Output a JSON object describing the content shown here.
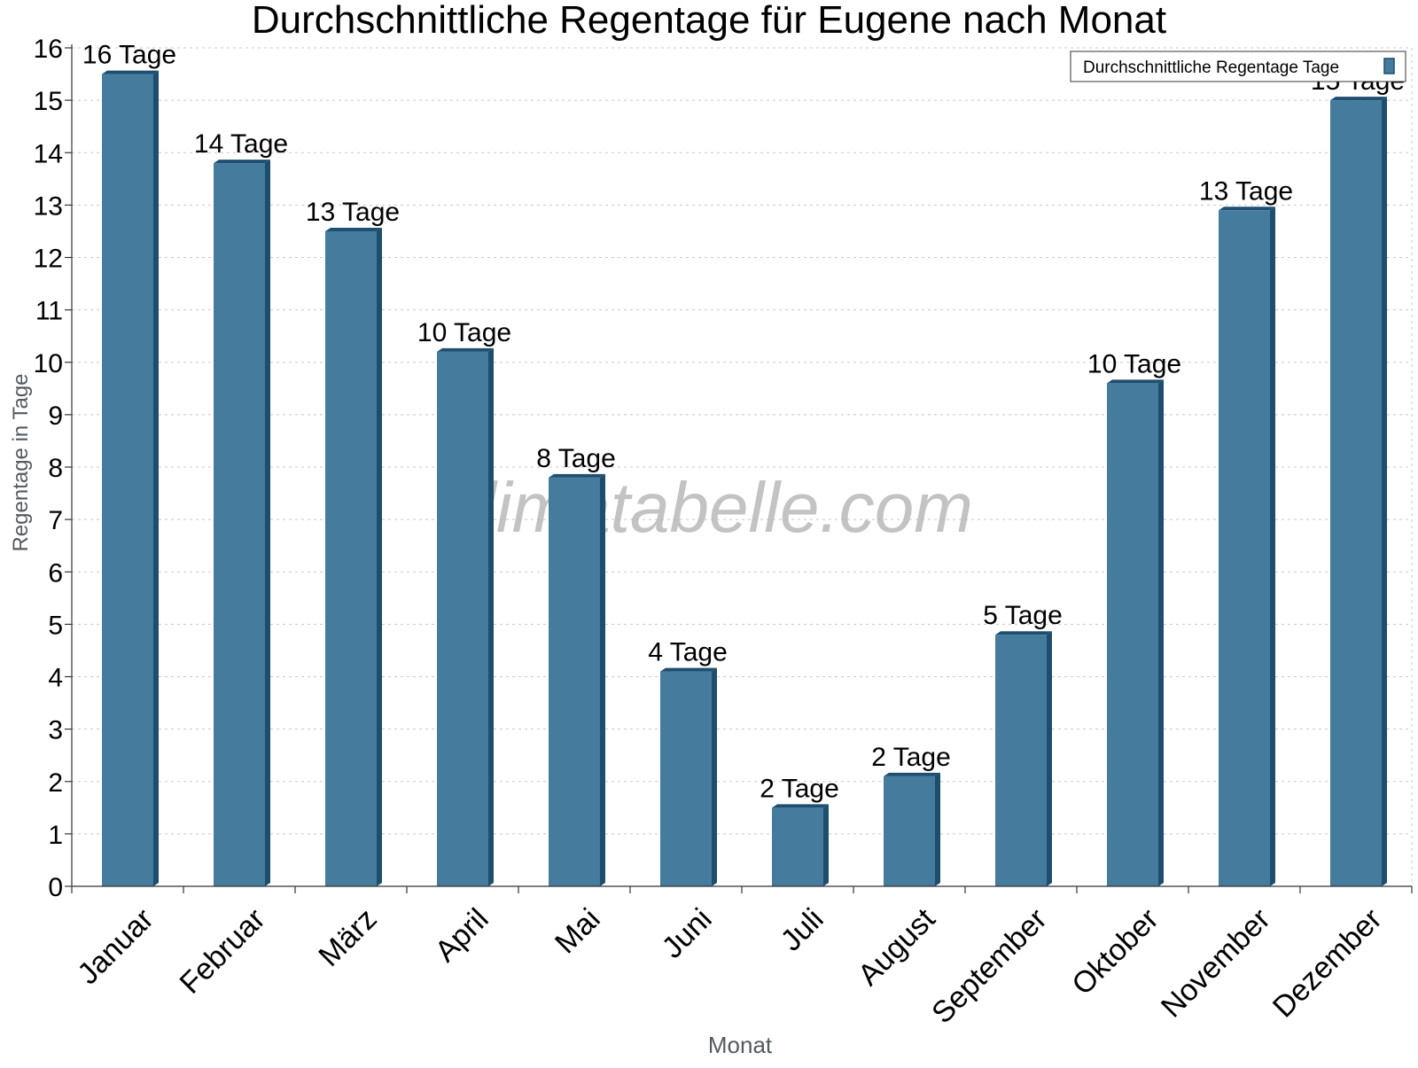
{
  "chart_data": {
    "type": "bar",
    "title": "Durchschnittliche Regentage für Eugene nach Monat",
    "xlabel": "Monat",
    "ylabel": "Regentage in Tage",
    "ylim": [
      0,
      16
    ],
    "yticks": [
      0,
      1,
      2,
      3,
      4,
      5,
      6,
      7,
      8,
      9,
      10,
      11,
      12,
      13,
      14,
      15,
      16
    ],
    "grid": true,
    "legend_position": "top-right",
    "categories": [
      "Januar",
      "Februar",
      "März",
      "April",
      "Mai",
      "Juni",
      "Juli",
      "August",
      "September",
      "Oktober",
      "November",
      "Dezember"
    ],
    "series": [
      {
        "name": "Durchschnittliche Regentage Tage",
        "values": [
          15.5,
          13.8,
          12.5,
          10.2,
          7.8,
          4.1,
          1.5,
          2.1,
          4.8,
          9.6,
          12.9,
          15.0
        ],
        "data_labels": [
          "16 Tage",
          "14 Tage",
          "13 Tage",
          "10 Tage",
          "8 Tage",
          "4 Tage",
          "2 Tage",
          "2 Tage",
          "5 Tage",
          "10 Tage",
          "13 Tage",
          "15 Tage"
        ]
      }
    ],
    "watermark": "klimatabelle.com",
    "colors": {
      "bar_face": "#457b9d",
      "bar_side": "#1d4e6e",
      "bar_top": "#1f4f70",
      "axis_text": "#000000",
      "axis_title": "#555a60",
      "watermark": "#b4b4b4"
    }
  }
}
